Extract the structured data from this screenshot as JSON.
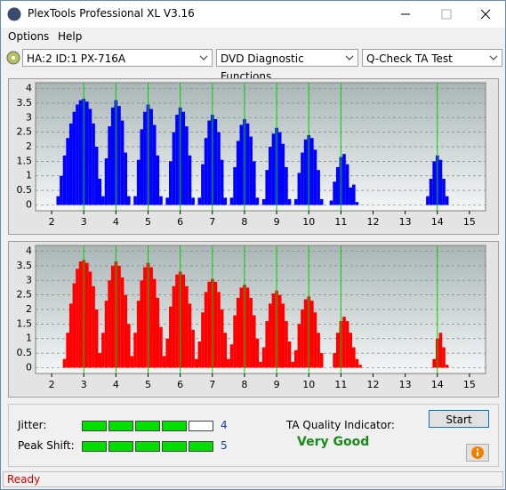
{
  "ui": {
    "window_title": "PlexTools Professional XL V3.16",
    "menu": [
      "Options",
      "Help"
    ],
    "toolbar": {
      "drive": "HA:2 ID:1  PX-716A",
      "function": "DVD Diagnostic Functions",
      "test": "Q-Check TA Test"
    },
    "jitter": {
      "label": "Jitter:",
      "value": 4
    },
    "peak_shift": {
      "label": "Peak Shift:",
      "value": 5
    },
    "quality": {
      "label": "TA Quality Indicator:",
      "value": "Very Good"
    },
    "start_button": "Start",
    "status": "Ready"
  },
  "chart_data": [
    {
      "type": "bar",
      "color": "#0000ff",
      "xlim": [
        1.5,
        15.5
      ],
      "ylim": [
        -0.2,
        4.2
      ],
      "xticks": [
        2,
        3,
        4,
        5,
        6,
        7,
        8,
        9,
        10,
        11,
        12,
        13,
        14,
        15
      ],
      "yticks": [
        0,
        0.5,
        1,
        1.5,
        2,
        2.5,
        3,
        3.5,
        4
      ],
      "grid": true,
      "markers": [
        3,
        4,
        5,
        6,
        7,
        8,
        9,
        10,
        11,
        14
      ],
      "marker_color": "#00d000",
      "x": [
        2.2,
        2.3,
        2.4,
        2.5,
        2.6,
        2.7,
        2.8,
        2.9,
        3.0,
        3.1,
        3.2,
        3.3,
        3.4,
        3.5,
        3.6,
        3.7,
        3.8,
        3.9,
        4.0,
        4.1,
        4.2,
        4.3,
        4.4,
        4.6,
        4.7,
        4.8,
        4.9,
        5.0,
        5.1,
        5.2,
        5.3,
        5.4,
        5.6,
        5.7,
        5.8,
        5.9,
        6.0,
        6.1,
        6.2,
        6.3,
        6.4,
        6.6,
        6.7,
        6.8,
        6.9,
        7.0,
        7.1,
        7.2,
        7.3,
        7.4,
        7.6,
        7.7,
        7.8,
        7.9,
        8.0,
        8.1,
        8.2,
        8.3,
        8.4,
        8.6,
        8.7,
        8.8,
        8.9,
        9.0,
        9.1,
        9.2,
        9.3,
        9.4,
        9.6,
        9.7,
        9.8,
        9.9,
        10.0,
        10.1,
        10.2,
        10.3,
        10.4,
        10.7,
        10.8,
        10.9,
        11.0,
        11.1,
        11.2,
        11.3,
        11.4,
        11.5,
        13.7,
        13.8,
        13.9,
        14.0,
        14.1,
        14.2,
        14.3
      ],
      "values": [
        0.3,
        1.0,
        1.7,
        2.3,
        2.8,
        3.2,
        3.45,
        3.6,
        3.65,
        3.55,
        3.3,
        2.8,
        2.0,
        0.9,
        0.3,
        1.6,
        2.7,
        3.35,
        3.6,
        3.4,
        2.9,
        1.8,
        0.3,
        0.3,
        1.55,
        2.6,
        3.2,
        3.45,
        3.3,
        2.75,
        1.7,
        0.3,
        0.25,
        1.5,
        2.5,
        3.1,
        3.35,
        3.2,
        2.7,
        1.7,
        0.25,
        0.25,
        1.4,
        2.3,
        2.9,
        3.1,
        2.95,
        2.5,
        1.55,
        0.25,
        0.25,
        1.3,
        2.2,
        2.75,
        2.95,
        2.8,
        2.35,
        1.5,
        0.25,
        0.2,
        1.2,
        2.0,
        2.45,
        2.65,
        2.5,
        2.1,
        1.3,
        0.2,
        0.2,
        1.1,
        1.8,
        2.25,
        2.4,
        2.3,
        1.9,
        1.2,
        0.2,
        0.15,
        0.8,
        1.3,
        1.65,
        1.75,
        1.4,
        0.6,
        0.7,
        0.1,
        0.3,
        0.9,
        1.5,
        1.7,
        1.55,
        0.9,
        0.3
      ]
    },
    {
      "type": "bar",
      "color": "#ff0000",
      "xlim": [
        1.5,
        15.5
      ],
      "ylim": [
        -0.2,
        4.2
      ],
      "xticks": [
        2,
        3,
        4,
        5,
        6,
        7,
        8,
        9,
        10,
        11,
        12,
        13,
        14,
        15
      ],
      "yticks": [
        0,
        0.5,
        1,
        1.5,
        2,
        2.5,
        3,
        3.5,
        4
      ],
      "grid": true,
      "markers": [
        3,
        4,
        5,
        6,
        7,
        8,
        9,
        10,
        11,
        14
      ],
      "marker_color": "#00d000",
      "x": [
        2.4,
        2.5,
        2.6,
        2.7,
        2.8,
        2.9,
        3.0,
        3.1,
        3.2,
        3.3,
        3.4,
        3.5,
        3.6,
        3.7,
        3.8,
        3.9,
        4.0,
        4.1,
        4.2,
        4.3,
        4.4,
        4.5,
        4.6,
        4.7,
        4.8,
        4.9,
        5.0,
        5.1,
        5.2,
        5.3,
        5.4,
        5.5,
        5.6,
        5.7,
        5.8,
        5.9,
        6.0,
        6.1,
        6.2,
        6.3,
        6.4,
        6.5,
        6.6,
        6.7,
        6.8,
        6.9,
        7.0,
        7.1,
        7.2,
        7.3,
        7.4,
        7.5,
        7.6,
        7.7,
        7.8,
        7.9,
        8.0,
        8.1,
        8.2,
        8.3,
        8.4,
        8.5,
        8.6,
        8.7,
        8.8,
        8.9,
        9.0,
        9.1,
        9.2,
        9.3,
        9.4,
        9.5,
        9.6,
        9.7,
        9.8,
        9.9,
        10.0,
        10.1,
        10.2,
        10.3,
        10.4,
        10.8,
        10.9,
        11.0,
        11.1,
        11.2,
        11.3,
        11.4,
        11.5,
        11.6,
        13.9,
        14.0,
        14.1,
        14.2,
        14.3
      ],
      "values": [
        0.3,
        1.2,
        2.2,
        2.9,
        3.4,
        3.65,
        3.7,
        3.6,
        3.3,
        2.8,
        2.0,
        0.5,
        1.2,
        2.3,
        3.0,
        3.5,
        3.65,
        3.5,
        3.1,
        2.5,
        1.5,
        0.4,
        1.2,
        2.3,
        3.0,
        3.45,
        3.6,
        3.45,
        3.05,
        2.4,
        1.4,
        0.4,
        1.0,
        2.1,
        2.8,
        3.2,
        3.3,
        3.2,
        2.8,
        2.2,
        1.3,
        0.3,
        0.9,
        1.9,
        2.6,
        2.95,
        3.05,
        2.95,
        2.6,
        2.0,
        1.2,
        0.3,
        0.8,
        1.8,
        2.4,
        2.75,
        2.85,
        2.75,
        2.4,
        1.8,
        1.0,
        0.2,
        0.7,
        1.6,
        2.2,
        2.55,
        2.65,
        2.5,
        2.2,
        1.6,
        0.9,
        0.2,
        0.6,
        1.5,
        2.0,
        2.35,
        2.45,
        2.3,
        1.9,
        1.2,
        0.5,
        0.5,
        1.2,
        1.6,
        1.75,
        1.6,
        1.2,
        0.7,
        0.3,
        0.1,
        0.3,
        1.0,
        1.2,
        0.7,
        0.1
      ]
    }
  ]
}
